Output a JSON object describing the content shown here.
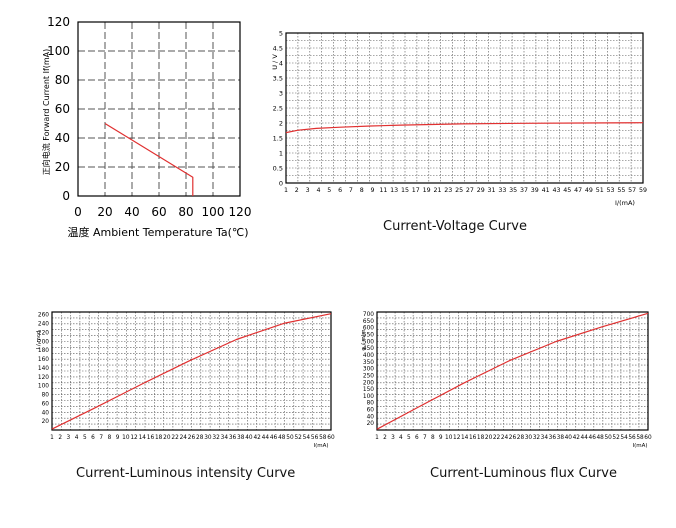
{
  "captions": {
    "voltage": "Current-Voltage Curve",
    "intensity": "Current-Luminous intensity Curve",
    "flux": "Current-Luminous flux Curve"
  },
  "colors": {
    "curve": "#e03030",
    "grid": "#555555",
    "frame": "#000000"
  },
  "chart_data": [
    {
      "type": "line",
      "title": "",
      "xlabel": "温度 Ambient Temperature Ta(℃)",
      "ylabel": "正向电流 Forward Current If(mA)",
      "xlim": [
        0,
        120
      ],
      "ylim": [
        0,
        120
      ],
      "xticks": [
        "0",
        "20",
        "40",
        "60",
        "80",
        "100",
        "120"
      ],
      "yticks": [
        "0",
        "20",
        "40",
        "60",
        "80",
        "100",
        "120"
      ],
      "grid": true,
      "series": [
        {
          "x": [
            20,
            85,
            85
          ],
          "y": [
            50,
            13,
            0
          ]
        }
      ]
    },
    {
      "type": "line",
      "title": "",
      "xlabel": "I/(mA)",
      "ylabel": "U / V",
      "xlim": [
        1,
        60
      ],
      "ylim": [
        0,
        5
      ],
      "xticks": [
        "1",
        "2",
        "3",
        "4",
        "5",
        "6",
        "7",
        "8",
        "9",
        "11",
        "13",
        "15",
        "17",
        "19",
        "21",
        "23",
        "25",
        "27",
        "29",
        "31",
        "33",
        "35",
        "37",
        "39",
        "41",
        "43",
        "45",
        "47",
        "49",
        "51",
        "53",
        "55",
        "57",
        "59"
      ],
      "yticks": [
        "0",
        "0.5",
        "1",
        "1.5",
        "2",
        "2.5",
        "3",
        "3.5",
        "4",
        "4.5",
        "5"
      ],
      "grid": true,
      "series": [
        {
          "x": [
            1,
            3,
            6,
            10,
            15,
            20,
            25,
            30,
            40,
            50,
            60
          ],
          "y": [
            1.68,
            1.76,
            1.82,
            1.86,
            1.9,
            1.93,
            1.95,
            1.97,
            1.99,
            2.0,
            2.01
          ]
        }
      ]
    },
    {
      "type": "line",
      "title": "",
      "xlabel": "I(mA)",
      "ylabel": "I / mcd",
      "xlim": [
        1,
        60
      ],
      "ylim": [
        0,
        270
      ],
      "xticks": [
        "1",
        "2",
        "3",
        "4",
        "5",
        "6",
        "7",
        "8",
        "9",
        "10",
        "12",
        "14",
        "16",
        "18",
        "20",
        "22",
        "24",
        "26",
        "28",
        "30",
        "32",
        "34",
        "36",
        "38",
        "40",
        "42",
        "44",
        "46",
        "48",
        "50",
        "52",
        "54",
        "56",
        "58",
        "60"
      ],
      "yticks": [
        "20",
        "40",
        "60",
        "80",
        "100",
        "120",
        "140",
        "160",
        "180",
        "200",
        "220",
        "240",
        "260"
      ],
      "grid": true,
      "series": [
        {
          "x": [
            1,
            10,
            20,
            30,
            40,
            50,
            60
          ],
          "y": [
            2,
            50,
            105,
            158,
            207,
            244,
            266
          ]
        }
      ]
    },
    {
      "type": "line",
      "title": "",
      "xlabel": "I(mA)",
      "ylabel": "φ / mlm",
      "xlim": [
        1,
        60
      ],
      "ylim": [
        0,
        720
      ],
      "xticks": [
        "1",
        "2",
        "3",
        "4",
        "5",
        "6",
        "7",
        "8",
        "9",
        "10",
        "12",
        "14",
        "16",
        "18",
        "20",
        "22",
        "24",
        "26",
        "28",
        "30",
        "32",
        "34",
        "36",
        "38",
        "40",
        "42",
        "44",
        "46",
        "48",
        "50",
        "52",
        "54",
        "56",
        "58",
        "60"
      ],
      "yticks": [
        "20",
        "40",
        "60",
        "80",
        "100",
        "150",
        "200",
        "250",
        "300",
        "350",
        "400",
        "450",
        "500",
        "550",
        "600",
        "650",
        "700"
      ],
      "grid": true,
      "series": [
        {
          "x": [
            1,
            10,
            20,
            30,
            40,
            50,
            60
          ],
          "y": [
            5,
            140,
            288,
            425,
            540,
            630,
            712
          ]
        }
      ]
    }
  ]
}
